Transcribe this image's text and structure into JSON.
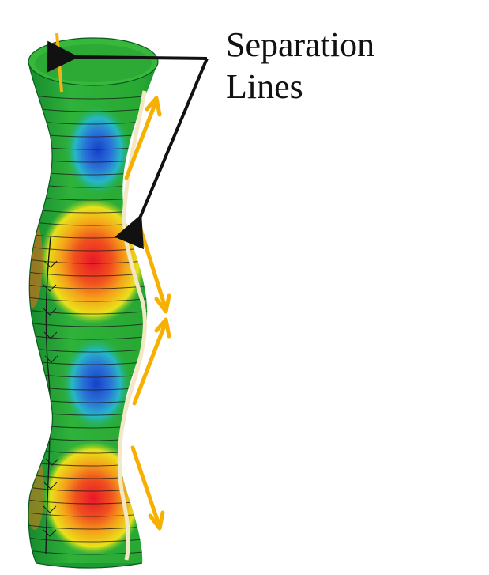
{
  "annotation": {
    "label": "Separation\nLines"
  }
}
